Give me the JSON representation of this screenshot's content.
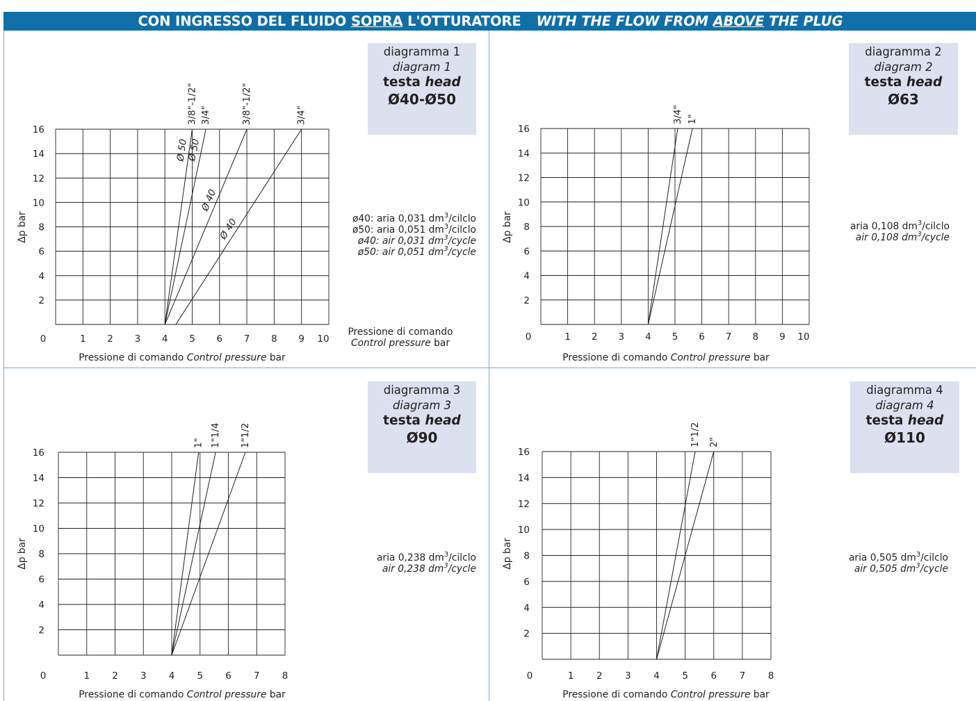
{
  "banner": {
    "left_a": "CON INGRESSO DEL FLUIDO ",
    "left_u": "SOPRA",
    "left_b": " L'OTTURATORE",
    "right_a": "WITH THE FLOW FROM ",
    "right_u": "ABOVE",
    "right_b": " THE PLUG"
  },
  "panels": [
    {
      "box": {
        "it": "diagramma 1",
        "en": "diagram 1",
        "testa": "testa",
        "head": "head",
        "dia": "Ø40-Ø50"
      },
      "notes": [
        {
          "a": "ø40: aria 0,031 dm",
          "sup": "3",
          "b": "/cilclo",
          "italic": false
        },
        {
          "a": "ø50: aria 0,051 dm",
          "sup": "3",
          "b": "/cilclo",
          "italic": false
        },
        {
          "a": "ø40: air 0,031 dm",
          "sup": "3",
          "b": "/cycle",
          "italic": true
        },
        {
          "a": "ø50: air 0,051 dm",
          "sup": "3",
          "b": "/cycle",
          "italic": true
        }
      ],
      "side_label": {
        "it": "Pressione di comando",
        "en": "Control pressure",
        "unit": "bar"
      }
    },
    {
      "box": {
        "it": "diagramma 2",
        "en": "diagram 2",
        "testa": "testa",
        "head": "head",
        "dia": "Ø63"
      },
      "notes": [
        {
          "a": "aria 0,108 dm",
          "sup": "3",
          "b": "/cilclo",
          "italic": false
        },
        {
          "a": "air 0,108 dm",
          "sup": "3",
          "b": "/cycle",
          "italic": true
        }
      ]
    },
    {
      "box": {
        "it": "diagramma 3",
        "en": "diagram 3",
        "testa": "testa",
        "head": "head",
        "dia": "Ø90"
      },
      "notes": [
        {
          "a": "aria 0,238 dm",
          "sup": "3",
          "b": "/cilclo",
          "italic": false
        },
        {
          "a": "air 0,238 dm",
          "sup": "3",
          "b": "/cycle",
          "italic": true
        }
      ]
    },
    {
      "box": {
        "it": "diagramma 4",
        "en": "diagram 4",
        "testa": "testa",
        "head": "head",
        "dia": "Ø110"
      },
      "notes": [
        {
          "a": "aria 0,505 dm",
          "sup": "3",
          "b": "/cilclo",
          "italic": false
        },
        {
          "a": "air 0,505 dm",
          "sup": "3",
          "b": "/cycle",
          "italic": true
        }
      ]
    }
  ],
  "chart_data": [
    {
      "type": "line",
      "xlabel_it": "Pressione di comando",
      "xlabel_en": "Control pressure",
      "xlabel_unit": "bar",
      "ylabel": "Δp bar",
      "xlim": [
        0,
        10
      ],
      "ylim": [
        0,
        16
      ],
      "x_ticks": [
        "0",
        "1",
        "2",
        "3",
        "4",
        "5",
        "6",
        "7",
        "8",
        "9",
        "10"
      ],
      "y_ticks": [
        "2",
        "4",
        "6",
        "8",
        "10",
        "12",
        "14",
        "16"
      ],
      "grid": true,
      "series": [
        {
          "name": "3/8\"-1/2\"",
          "diameter": "Ø 50",
          "x": [
            4.0,
            5.0
          ],
          "y": [
            0,
            16
          ]
        },
        {
          "name": "3/4\"",
          "diameter": "Ø 50",
          "x": [
            4.0,
            5.5
          ],
          "y": [
            0,
            16
          ]
        },
        {
          "name": "3/8\"-1/2\"",
          "diameter": "Ø 40",
          "x": [
            4.0,
            7.0
          ],
          "y": [
            0,
            16
          ]
        },
        {
          "name": "3/4\"",
          "diameter": "Ø 40",
          "x": [
            4.4,
            9.0
          ],
          "y": [
            0,
            16
          ]
        }
      ]
    },
    {
      "type": "line",
      "xlabel_it": "Pressione di comando",
      "xlabel_en": "Control pressure",
      "xlabel_unit": "bar",
      "ylabel": "Δp bar",
      "xlim": [
        0,
        10
      ],
      "ylim": [
        0,
        16
      ],
      "x_ticks": [
        "0",
        "1",
        "2",
        "3",
        "4",
        "5",
        "6",
        "7",
        "8",
        "9",
        "10"
      ],
      "y_ticks": [
        "2",
        "4",
        "6",
        "8",
        "10",
        "12",
        "14",
        "16"
      ],
      "grid": true,
      "series": [
        {
          "name": "3/4\"",
          "x": [
            4.0,
            5.1
          ],
          "y": [
            0,
            16
          ]
        },
        {
          "name": "1\"",
          "x": [
            4.0,
            5.65
          ],
          "y": [
            0,
            16
          ]
        }
      ]
    },
    {
      "type": "line",
      "xlabel_it": "Pressione di comando",
      "xlabel_en": "Control pressure",
      "xlabel_unit": "bar",
      "ylabel": "Δp bar",
      "xlim": [
        0,
        8
      ],
      "ylim": [
        0,
        16
      ],
      "x_ticks": [
        "0",
        "1",
        "2",
        "3",
        "4",
        "5",
        "6",
        "7",
        "8"
      ],
      "y_ticks": [
        "2",
        "4",
        "6",
        "8",
        "10",
        "12",
        "14",
        "16"
      ],
      "grid": true,
      "series": [
        {
          "name": "1\"",
          "x": [
            4.0,
            4.95
          ],
          "y": [
            0,
            16
          ]
        },
        {
          "name": "1\"1/4",
          "x": [
            4.0,
            5.55
          ],
          "y": [
            0,
            16
          ]
        },
        {
          "name": "1\"1/2",
          "x": [
            4.0,
            6.6
          ],
          "y": [
            0,
            16
          ]
        }
      ]
    },
    {
      "type": "line",
      "xlabel_it": "Pressione di comando",
      "xlabel_en": "Control pressure",
      "xlabel_unit": "bar",
      "ylabel": "Δp bar",
      "xlim": [
        0,
        8
      ],
      "ylim": [
        0,
        16
      ],
      "x_ticks": [
        "0",
        "1",
        "2",
        "3",
        "4",
        "5",
        "6",
        "7",
        "8"
      ],
      "y_ticks": [
        "2",
        "4",
        "6",
        "8",
        "10",
        "12",
        "14",
        "16"
      ],
      "grid": true,
      "series": [
        {
          "name": "1\"1/2",
          "x": [
            4.0,
            5.35
          ],
          "y": [
            0,
            16
          ]
        },
        {
          "name": "2\"",
          "x": [
            4.0,
            6.0
          ],
          "y": [
            0,
            16
          ]
        }
      ]
    }
  ]
}
